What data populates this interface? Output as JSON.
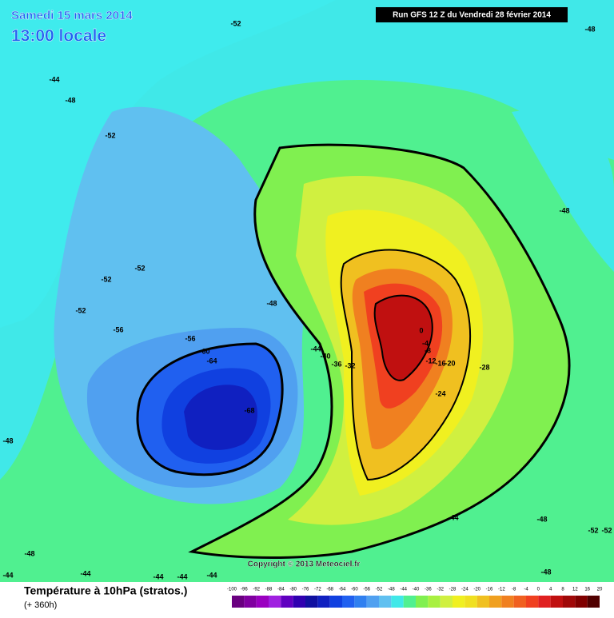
{
  "header": {
    "date": "Samedi 15 mars 2014",
    "time": "13:00 locale",
    "run": "Run GFS 12 Z du Vendredi 28 février 2014"
  },
  "map_labels": [
    "-52",
    "-48",
    "-44",
    "-48",
    "-52",
    "-48",
    "-52",
    "-52",
    "-52",
    "-48",
    "-56",
    "-56",
    "-60",
    "-64",
    "-44",
    "-40",
    "-36",
    "-32",
    "0",
    "-4",
    "-8",
    "-12",
    "-16",
    "-20",
    "-28",
    "-24",
    "-68",
    "-48",
    "-44",
    "-48",
    "-52",
    "-52",
    "-48",
    "-48",
    "-44",
    "-44",
    "-44",
    "-44",
    "-44"
  ],
  "copyright": "Copyright © 2013 Meteociel.fr",
  "footer": {
    "title": "Température à 10hPa (stratos.)",
    "lead": "(+ 360h)"
  },
  "legend": {
    "labels": [
      -100,
      -96,
      -92,
      -88,
      -84,
      -80,
      -76,
      -72,
      -68,
      -64,
      -60,
      -56,
      -52,
      -48,
      -44,
      -40,
      -36,
      -32,
      -28,
      -24,
      -20,
      -16,
      -12,
      -8,
      -4,
      0,
      4,
      8,
      12,
      16,
      20
    ],
    "colors": [
      "#6a0080",
      "#8000a0",
      "#9a00c0",
      "#a020e0",
      "#6000c0",
      "#3000b0",
      "#1010a0",
      "#1020c0",
      "#1040e0",
      "#2060f0",
      "#3080f0",
      "#50a0f0",
      "#60c0f0",
      "#40e8e8",
      "#50f090",
      "#80f050",
      "#a8f040",
      "#d0f040",
      "#f0f020",
      "#f0e020",
      "#f0c020",
      "#f0a020",
      "#f08020",
      "#f06020",
      "#f04020",
      "#e02020",
      "#c01010",
      "#a00808",
      "#800000",
      "#500000"
    ]
  }
}
